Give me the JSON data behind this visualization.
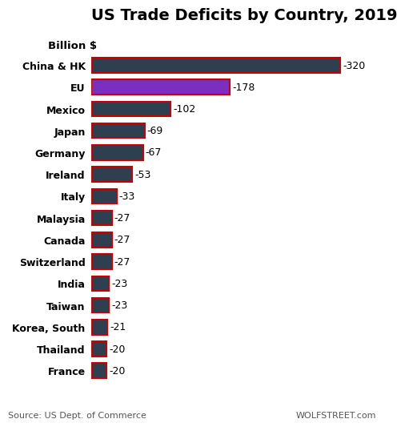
{
  "title": "US Trade Deficits by Country, 2019",
  "subtitle": "Billion $",
  "categories": [
    "China & HK",
    "EU",
    "Mexico",
    "Japan",
    "Germany",
    "Ireland",
    "Italy",
    "Malaysia",
    "Canada",
    "Switzerland",
    "India",
    "Taiwan",
    "Korea, South",
    "Thailand",
    "France"
  ],
  "values": [
    320,
    178,
    102,
    69,
    67,
    53,
    33,
    27,
    27,
    27,
    23,
    23,
    21,
    20,
    20
  ],
  "labels": [
    "-320",
    "-178",
    "-102",
    "-69",
    "-67",
    "-53",
    "-33",
    "-27",
    "-27",
    "-27",
    "-23",
    "-23",
    "-21",
    "-20",
    "-20"
  ],
  "bar_colors": [
    "#2e3f4f",
    "#7b2fbe",
    "#2e3f4f",
    "#2e3f4f",
    "#2e3f4f",
    "#2e3f4f",
    "#2e3f4f",
    "#2e3f4f",
    "#2e3f4f",
    "#2e3f4f",
    "#2e3f4f",
    "#2e3f4f",
    "#2e3f4f",
    "#2e3f4f",
    "#2e3f4f"
  ],
  "edge_color": "#cc0000",
  "edge_linewidth": 1.5,
  "xlim": [
    0,
    360
  ],
  "source_text": "Source: US Dept. of Commerce",
  "watermark": "WOLFSTREET.com",
  "background_color": "#ffffff",
  "title_fontsize": 14,
  "subtitle_fontsize": 9.5,
  "label_fontsize": 9,
  "tick_fontsize": 9,
  "source_fontsize": 8
}
